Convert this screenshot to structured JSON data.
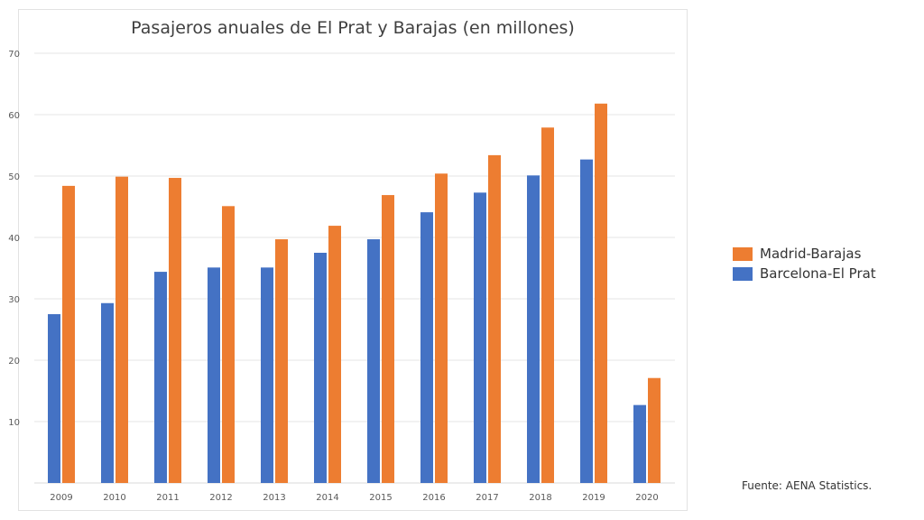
{
  "chart_data": {
    "type": "bar",
    "title": "Pasajeros anuales de El Prat y Barajas (en millones)",
    "categories": [
      "2009",
      "2010",
      "2011",
      "2012",
      "2013",
      "2014",
      "2015",
      "2016",
      "2017",
      "2018",
      "2019",
      "2020"
    ],
    "series": [
      {
        "name": "Barcelona-El Prat",
        "color": "#4472c4",
        "values": [
          27.5,
          29.3,
          34.4,
          35.1,
          35.1,
          37.5,
          39.7,
          44.1,
          47.3,
          50.1,
          52.7,
          12.7
        ]
      },
      {
        "name": "Madrid-Barajas",
        "color": "#ed7d31",
        "values": [
          48.4,
          49.9,
          49.7,
          45.1,
          39.7,
          41.9,
          46.9,
          50.4,
          53.4,
          57.9,
          61.8,
          17.1
        ]
      }
    ],
    "yticks": [
      "10",
      "20",
      "30",
      "40",
      "50",
      "60",
      "70"
    ],
    "ylim": [
      0,
      70
    ],
    "grid": true,
    "legend_position": "right",
    "legend_order": [
      "Madrid-Barajas",
      "Barcelona-El Prat"
    ],
    "source": "Fuente: AENA Statistics."
  }
}
